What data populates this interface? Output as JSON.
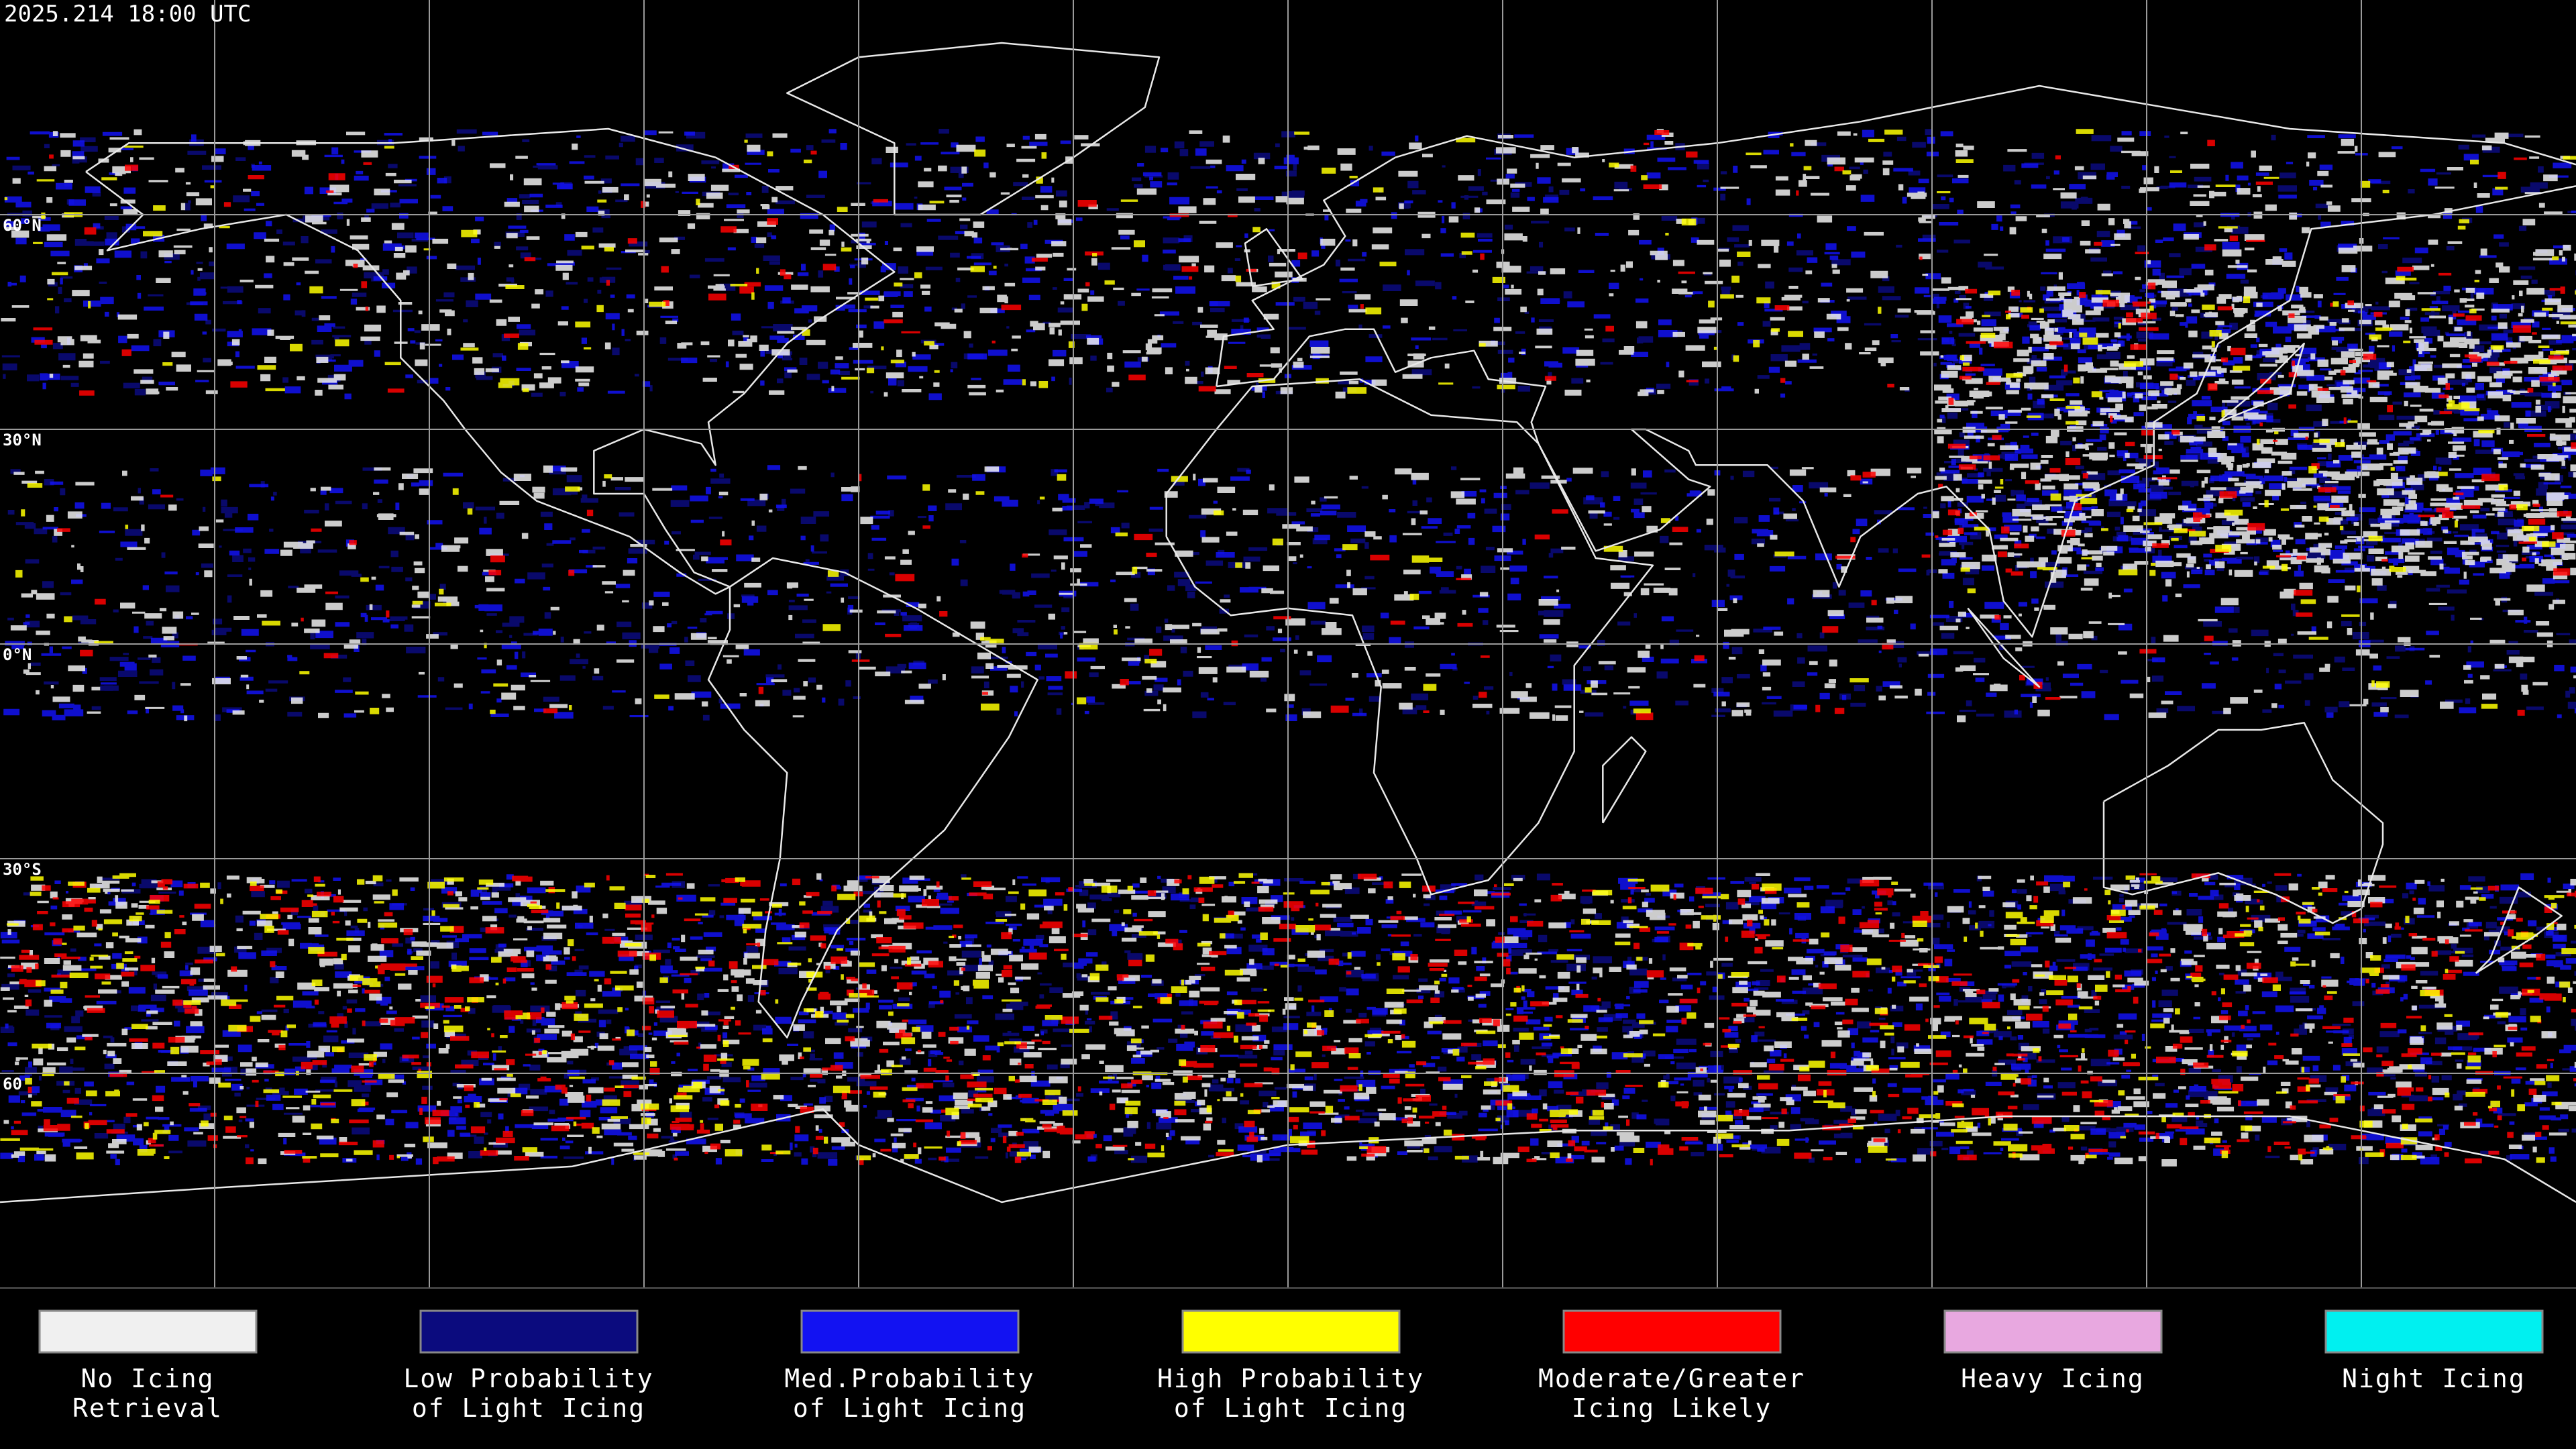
{
  "header": {
    "timestamp": "2025.214 18:00 UTC"
  },
  "map": {
    "latitude_labels": [
      "60°N",
      "30°N",
      "0°N",
      "30°S",
      "60"
    ]
  },
  "legend": [
    {
      "label_lines": [
        "No Icing",
        "Retrieval"
      ],
      "color": "#f0f0f0"
    },
    {
      "label_lines": [
        "Low Probability",
        "of Light Icing"
      ],
      "color": "#0b0b7e"
    },
    {
      "label_lines": [
        "Med.Probability",
        "of Light Icing"
      ],
      "color": "#1212f2"
    },
    {
      "label_lines": [
        "High Probability",
        "of Light Icing"
      ],
      "color": "#ffff00"
    },
    {
      "label_lines": [
        "Moderate/Greater",
        "Icing Likely"
      ],
      "color": "#ff0000"
    },
    {
      "label_lines": [
        "Heavy Icing"
      ],
      "color": "#e8a8e0"
    },
    {
      "label_lines": [
        "Night Icing"
      ],
      "color": "#00f0f0"
    }
  ]
}
